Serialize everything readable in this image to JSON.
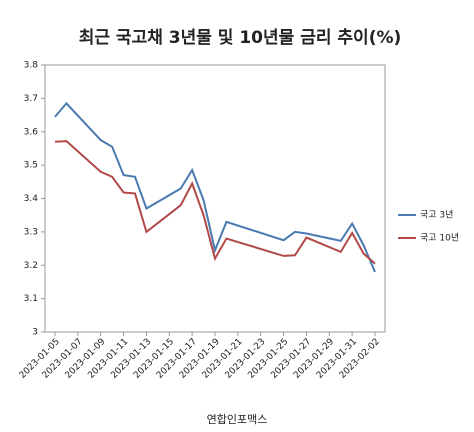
{
  "chart_data": {
    "type": "line",
    "title": "최근 국고채 3년물 및 10년물 금리 추이(%)",
    "footer": "연합인포맥스",
    "x": [
      "2023-01-05",
      "2023-01-06",
      "2023-01-09",
      "2023-01-10",
      "2023-01-11",
      "2023-01-12",
      "2023-01-13",
      "2023-01-16",
      "2023-01-17",
      "2023-01-18",
      "2023-01-19",
      "2023-01-20",
      "2023-01-25",
      "2023-01-26",
      "2023-01-27",
      "2023-01-30",
      "2023-01-31",
      "2023-02-01",
      "2023-02-02"
    ],
    "xlim": [
      "2023-01-05",
      "2023-02-02"
    ],
    "xticks": [
      "2023-01-05",
      "2023-01-07",
      "2023-01-09",
      "2023-01-11",
      "2023-01-13",
      "2023-01-15",
      "2023-01-17",
      "2023-01-19",
      "2023-01-21",
      "2023-01-23",
      "2023-01-25",
      "2023-01-27",
      "2023-01-29",
      "2023-01-31",
      "2023-02-02"
    ],
    "ylim": [
      3,
      3.8
    ],
    "yticks": [
      3,
      3.1,
      3.2,
      3.3,
      3.4,
      3.5,
      3.6,
      3.7,
      3.8
    ],
    "legend": "right",
    "series": [
      {
        "name": "국고 3년",
        "color": "#4a7ab0",
        "values": [
          3.645,
          3.685,
          3.575,
          3.555,
          3.47,
          3.465,
          3.37,
          3.43,
          3.485,
          3.395,
          3.245,
          3.33,
          3.275,
          3.3,
          3.295,
          3.273,
          3.325,
          3.26,
          3.18
        ]
      },
      {
        "name": "국고 10년",
        "color": "#b04a48",
        "values": [
          3.57,
          3.572,
          3.48,
          3.465,
          3.418,
          3.415,
          3.3,
          3.38,
          3.445,
          3.35,
          3.22,
          3.28,
          3.228,
          3.23,
          3.283,
          3.24,
          3.297,
          3.235,
          3.205
        ]
      }
    ]
  }
}
